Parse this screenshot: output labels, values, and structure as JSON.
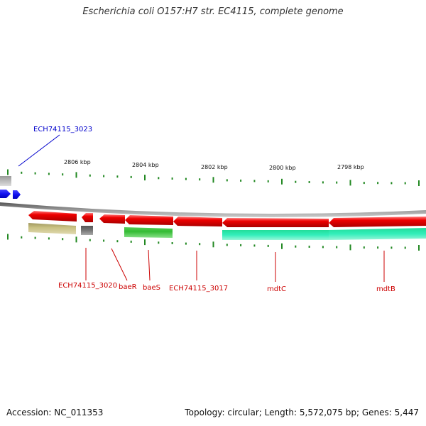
{
  "title": "Escherichia coli O157:H7 str. EC4115, complete genome",
  "footer": {
    "accession": "Accession: NC_011353",
    "topology": "Topology: circular; Length: 5,572,075 bp; Genes: 5,447"
  },
  "ruler": {
    "labels": [
      "2806 kbp",
      "2804 kbp",
      "2802 kbp",
      "2800 kbp",
      "2798 kbp"
    ]
  },
  "genes": [
    {
      "name": "ECH74115_3023",
      "color": "blue"
    },
    {
      "name": "ECH74115_3020",
      "color": "red"
    },
    {
      "name": "baeR",
      "color": "red"
    },
    {
      "name": "baeS",
      "color": "red"
    },
    {
      "name": "ECH74115_3017",
      "color": "red"
    },
    {
      "name": "mdtC",
      "color": "red"
    },
    {
      "name": "mdtB",
      "color": "red"
    }
  ],
  "colors": {
    "forward_cds": "#e00000",
    "reverse_blue": "#1010f0",
    "rna_green": "#33bb33",
    "teal": "#22dd99",
    "olive": "#c8c080",
    "grey_feature": "#777777",
    "backbone": "#888888",
    "tick": "#228822"
  }
}
